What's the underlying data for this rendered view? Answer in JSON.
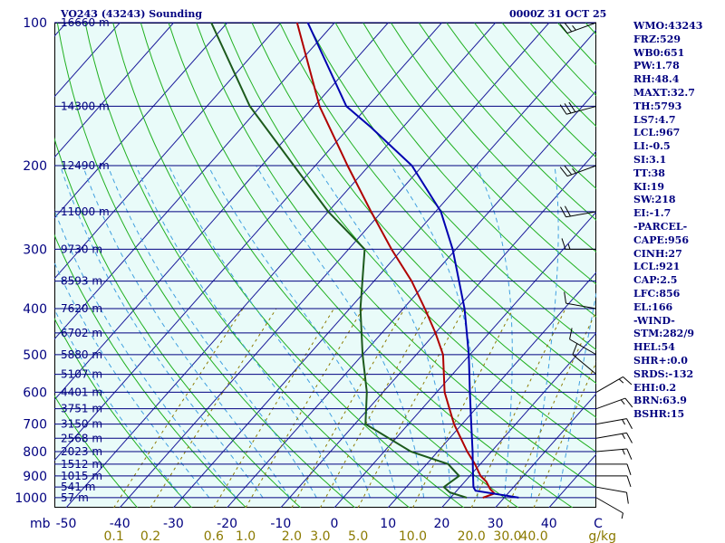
{
  "header": {
    "station": "VO243 (43243) Sounding",
    "time": "0000Z 31 OCT 25"
  },
  "stats": [
    "WMO:43243",
    "FRZ:529",
    "WB0:651",
    "PW:1.78",
    "RH:48.4",
    "MAXT:32.7",
    "TH:5793",
    "LS7:4.7",
    "LCL:967",
    "LI:-0.5",
    "SI:3.1",
    "TT:38",
    "KI:19",
    "SW:218",
    "EI:-1.7",
    "-PARCEL-",
    "CAPE:956",
    "CINH:27",
    "LCL:921",
    "CAP:2.5",
    "LFC:856",
    "EL:166",
    "-WIND-",
    "STM:282/9",
    "HEL:54",
    "SHR+:0.0",
    "SRDS:-132",
    "EHI:0.2",
    "BRN:63.9",
    "BSHR:15"
  ],
  "chart_data": {
    "type": "line",
    "title": "VO243 (43243) Sounding",
    "diagram": "skew-T log-p",
    "colors": {
      "temperature": "#b00000",
      "dewpoint": "#1c5a1c",
      "parcel": "#0000b0",
      "axes": "#000080",
      "isobars": "#000080",
      "isotherms": "#1a1a9a",
      "dry_adiabats": "#20b020",
      "moist_adiabats": "#40a0e0",
      "mixing_ratio": "#8b7a00"
    },
    "pressure_labels": [
      "100",
      "200",
      "300",
      "400",
      "500",
      "600",
      "700",
      "800",
      "900",
      "1000"
    ],
    "pressure_values": [
      100,
      200,
      300,
      400,
      500,
      600,
      700,
      800,
      900,
      1000
    ],
    "pressure_axis_label": "mb",
    "temperature_labels": [
      "-50",
      "-40",
      "-30",
      "-20",
      "-10",
      "0",
      "10",
      "20",
      "30",
      "40"
    ],
    "temperature_values": [
      -50,
      -40,
      -30,
      -20,
      -10,
      0,
      10,
      20,
      30,
      40
    ],
    "extra_temp_label": "C",
    "mixing_ratio_labels": [
      "0.1",
      "0.2",
      "0.6",
      "1.0",
      "2.0",
      "3.0",
      "5.0",
      "10.0",
      "20.0",
      "30.0",
      "40.0"
    ],
    "mixing_ratio_values": [
      0.1,
      0.2,
      0.6,
      1.0,
      2.0,
      3.0,
      5.0,
      10.0,
      20.0,
      30.0,
      40.0
    ],
    "mixing_ratio_unit": "g/kg",
    "height_labels": [
      {
        "p": 100,
        "label": "16660 m"
      },
      {
        "p": 150,
        "label": "14300 m"
      },
      {
        "p": 200,
        "label": "12490 m"
      },
      {
        "p": 250,
        "label": "11000 m"
      },
      {
        "p": 300,
        "label": "9730 m"
      },
      {
        "p": 350,
        "label": "8593 m"
      },
      {
        "p": 400,
        "label": "7620 m"
      },
      {
        "p": 450,
        "label": "6702 m"
      },
      {
        "p": 500,
        "label": "5880 m"
      },
      {
        "p": 550,
        "label": "5107 m"
      },
      {
        "p": 600,
        "label": "4401 m"
      },
      {
        "p": 650,
        "label": "3751 m"
      },
      {
        "p": 700,
        "label": "3150 m"
      },
      {
        "p": 750,
        "label": "2568 m"
      },
      {
        "p": 800,
        "label": "2023 m"
      },
      {
        "p": 850,
        "label": "1512 m"
      },
      {
        "p": 900,
        "label": "1015 m"
      },
      {
        "p": 950,
        "label": "541 m"
      },
      {
        "p": 1000,
        "label": "57 m"
      }
    ],
    "series": [
      {
        "name": "temperature",
        "points": [
          [
            1000,
            26.0
          ],
          [
            980,
            27.5
          ],
          [
            960,
            26.0
          ],
          [
            925,
            24.0
          ],
          [
            900,
            22.0
          ],
          [
            850,
            19.0
          ],
          [
            800,
            15.5
          ],
          [
            700,
            8.5
          ],
          [
            600,
            1.5
          ],
          [
            500,
            -5.0
          ],
          [
            450,
            -10.0
          ],
          [
            400,
            -16.0
          ],
          [
            350,
            -23.0
          ],
          [
            300,
            -32.0
          ],
          [
            250,
            -42.0
          ],
          [
            200,
            -54.0
          ],
          [
            150,
            -69.0
          ],
          [
            100,
            -87.0
          ]
        ]
      },
      {
        "name": "dewpoint",
        "points": [
          [
            1000,
            23.0
          ],
          [
            975,
            19.0
          ],
          [
            950,
            17.0
          ],
          [
            925,
            17.5
          ],
          [
            900,
            18.0
          ],
          [
            850,
            14.0
          ],
          [
            800,
            5.0
          ],
          [
            700,
            -8.0
          ],
          [
            600,
            -13.0
          ],
          [
            500,
            -20.0
          ],
          [
            400,
            -28.0
          ],
          [
            300,
            -37.0
          ],
          [
            250,
            -50.0
          ],
          [
            200,
            -64.0
          ],
          [
            150,
            -82.0
          ],
          [
            100,
            -103.0
          ]
        ]
      },
      {
        "name": "parcel",
        "points": [
          [
            1000,
            32.7
          ],
          [
            967,
            23.5
          ],
          [
            950,
            22.5
          ],
          [
            900,
            20.6
          ],
          [
            850,
            18.6
          ],
          [
            800,
            16.5
          ],
          [
            700,
            11.7
          ],
          [
            600,
            6.2
          ],
          [
            500,
            -0.2
          ],
          [
            400,
            -8.6
          ],
          [
            300,
            -20.6
          ],
          [
            250,
            -29.0
          ],
          [
            200,
            -42.0
          ],
          [
            166,
            -56.0
          ],
          [
            150,
            -64.0
          ],
          [
            100,
            -85.0
          ]
        ]
      }
    ],
    "wind_barbs": [
      {
        "p": 100,
        "dir": 250,
        "spd": 25
      },
      {
        "p": 150,
        "dir": 255,
        "spd": 30
      },
      {
        "p": 200,
        "dir": 250,
        "spd": 25
      },
      {
        "p": 250,
        "dir": 260,
        "spd": 20
      },
      {
        "p": 300,
        "dir": 270,
        "spd": 15
      },
      {
        "p": 400,
        "dir": 280,
        "spd": 10
      },
      {
        "p": 500,
        "dir": 300,
        "spd": 10
      },
      {
        "p": 550,
        "dir": 310,
        "spd": 10
      },
      {
        "p": 600,
        "dir": 60,
        "spd": 15
      },
      {
        "p": 650,
        "dir": 70,
        "spd": 15
      },
      {
        "p": 700,
        "dir": 80,
        "spd": 15
      },
      {
        "p": 750,
        "dir": 80,
        "spd": 15
      },
      {
        "p": 800,
        "dir": 85,
        "spd": 15
      },
      {
        "p": 850,
        "dir": 90,
        "spd": 10
      },
      {
        "p": 900,
        "dir": 90,
        "spd": 10
      },
      {
        "p": 950,
        "dir": 100,
        "spd": 10
      },
      {
        "p": 1000,
        "dir": 120,
        "spd": 5
      }
    ]
  }
}
